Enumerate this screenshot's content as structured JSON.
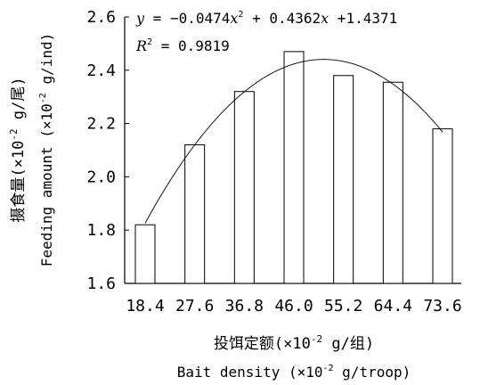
{
  "chart_data": {
    "type": "bar",
    "categories": [
      "18.4",
      "27.6",
      "36.8",
      "46.0",
      "55.2",
      "64.4",
      "73.6"
    ],
    "values": [
      1.82,
      2.12,
      2.32,
      2.47,
      2.38,
      2.355,
      2.18
    ],
    "ylim": [
      1.6,
      2.6
    ],
    "yticks": [
      "1.6",
      "1.8",
      "2.0",
      "2.2",
      "2.4",
      "2.6"
    ],
    "xlabel_cn": "投饵定额(×10",
    "xlabel_cn_exp": "-2",
    "xlabel_cn_unit": " g/组)",
    "xlabel_en": "Bait density (×10",
    "xlabel_en_exp": "-2",
    "xlabel_en_unit": " g/troop)",
    "ylabel_cn": "摄食量(×10",
    "ylabel_cn_exp": "-2",
    "ylabel_cn_unit": " g/尾)",
    "ylabel_en": "Feeding amount (×10",
    "ylabel_en_exp": "-2",
    "ylabel_en_unit": " g/ind)",
    "trend": {
      "type": "quadratic",
      "a": -0.0474,
      "b": 0.4362,
      "c": 1.4371,
      "equation_y": "y",
      "equation_eq": " = −0.0474",
      "equation_x1": "x",
      "equation_exp": "2",
      "equation_mid": " + 0.4362",
      "equation_x2": "x",
      "equation_end": " +1.4371",
      "r2_r": "R",
      "r2_exp": "2",
      "r2_value": " = 0.9819"
    },
    "grid": false,
    "legend": "none"
  }
}
